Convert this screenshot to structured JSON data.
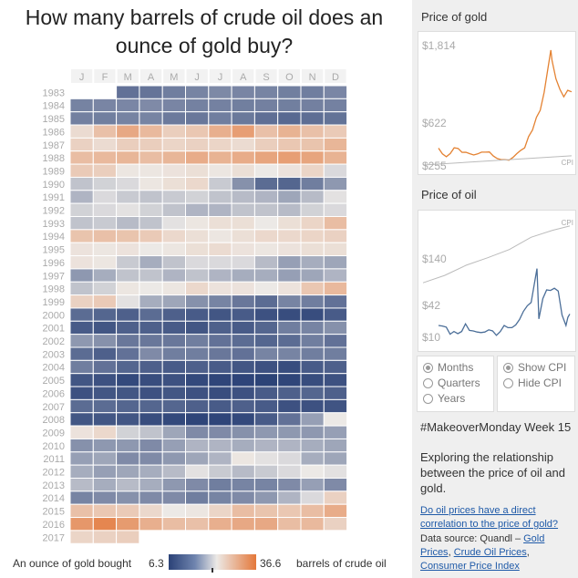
{
  "title": "How many barrels of crude oil does an ounce of gold buy?",
  "chart_data": {
    "type": "heatmap",
    "title": "How many barrels of crude oil does an ounce of gold buy?",
    "xlabel": "",
    "ylabel": "",
    "months": [
      "J",
      "F",
      "M",
      "A",
      "M",
      "J",
      "J",
      "A",
      "S",
      "O",
      "N",
      "D"
    ],
    "years": [
      "1983",
      "1984",
      "1985",
      "1986",
      "1987",
      "1988",
      "1989",
      "1990",
      "1991",
      "1992",
      "1993",
      "1994",
      "1995",
      "1996",
      "1997",
      "1998",
      "1999",
      "2000",
      "2001",
      "2002",
      "2003",
      "2004",
      "2005",
      "2006",
      "2007",
      "2008",
      "2009",
      "2010",
      "2011",
      "2012",
      "2013",
      "2014",
      "2015",
      "2016",
      "2017"
    ],
    "color_range": [
      6.3,
      36.6
    ],
    "colors": {
      "low": "#2b4277",
      "mid": "#ece9e6",
      "high": "#e4783a",
      "empty": "#ffffff"
    },
    "values": [
      [
        null,
        null,
        11.5,
        11.7,
        12.5,
        13.0,
        13.4,
        13.1,
        13.0,
        12.6,
        12.5,
        13.2
      ],
      [
        12.9,
        13.1,
        13.2,
        13.5,
        13.1,
        12.8,
        12.8,
        12.6,
        12.7,
        12.6,
        12.7,
        12.8
      ],
      [
        12.7,
        12.6,
        12.9,
        13.0,
        12.2,
        12.0,
        12.5,
        12.1,
        11.3,
        10.8,
        11.2,
        11.6
      ],
      [
        22.0,
        26.0,
        29.5,
        27.0,
        24.0,
        25.0,
        28.5,
        31.0,
        26.0,
        28.0,
        26.0,
        24.5
      ],
      [
        23.5,
        22.0,
        24.0,
        24.0,
        23.0,
        23.5,
        23.0,
        22.0,
        24.0,
        25.0,
        25.5,
        27.5
      ],
      [
        26.5,
        27.0,
        27.5,
        26.5,
        27.5,
        29.0,
        28.0,
        29.0,
        30.0,
        31.0,
        30.0,
        28.0
      ],
      [
        24.5,
        24.0,
        20.5,
        20.5,
        21.0,
        21.5,
        20.5,
        21.5,
        20.0,
        21.0,
        23.0,
        19.0
      ],
      [
        17.5,
        18.5,
        19.0,
        20.5,
        21.5,
        22.5,
        18.0,
        14.0,
        11.0,
        10.5,
        12.5,
        14.5
      ],
      [
        16.5,
        19.0,
        18.0,
        17.5,
        18.0,
        18.5,
        17.5,
        17.0,
        16.5,
        15.5,
        17.0,
        19.5
      ],
      [
        18.5,
        19.0,
        19.5,
        18.5,
        17.5,
        16.5,
        16.5,
        17.5,
        17.5,
        17.0,
        18.5,
        19.0
      ],
      [
        17.5,
        18.0,
        17.0,
        17.5,
        19.5,
        20.5,
        21.5,
        21.5,
        20.0,
        21.5,
        23.0,
        26.5
      ],
      [
        25.5,
        26.0,
        25.5,
        24.5,
        22.5,
        21.5,
        20.5,
        21.5,
        22.5,
        22.5,
        23.0,
        23.5
      ],
      [
        21.0,
        20.5,
        21.0,
        20.0,
        20.5,
        21.5,
        22.0,
        21.0,
        20.5,
        21.0,
        21.5,
        21.5
      ],
      [
        21.0,
        20.5,
        18.0,
        16.0,
        17.5,
        19.0,
        19.0,
        19.0,
        17.0,
        15.0,
        16.0,
        15.5
      ],
      [
        14.5,
        16.0,
        17.5,
        17.5,
        16.5,
        17.5,
        16.5,
        16.0,
        16.0,
        15.0,
        15.5,
        16.5
      ],
      [
        17.5,
        18.5,
        20.5,
        20.0,
        20.5,
        22.5,
        21.0,
        21.0,
        20.0,
        21.0,
        25.0,
        27.0
      ],
      [
        23.5,
        24.5,
        19.5,
        16.0,
        15.5,
        14.0,
        13.0,
        12.0,
        11.0,
        13.0,
        12.5,
        11.5
      ],
      [
        11.0,
        10.5,
        10.0,
        11.0,
        10.0,
        9.5,
        9.0,
        9.5,
        8.5,
        8.0,
        8.0,
        9.5
      ],
      [
        9.5,
        9.0,
        10.0,
        10.0,
        9.5,
        9.0,
        10.0,
        9.5,
        10.5,
        12.5,
        13.0,
        14.0
      ],
      [
        14.5,
        14.0,
        12.0,
        12.0,
        12.0,
        12.5,
        11.5,
        11.0,
        10.5,
        11.0,
        12.5,
        11.5
      ],
      [
        11.0,
        10.0,
        11.5,
        13.5,
        12.5,
        12.5,
        12.0,
        11.5,
        13.0,
        13.0,
        12.5,
        12.5
      ],
      [
        12.5,
        11.5,
        10.5,
        10.0,
        9.5,
        10.0,
        9.5,
        9.0,
        8.5,
        8.0,
        9.5,
        10.0
      ],
      [
        9.0,
        8.5,
        7.5,
        8.0,
        8.5,
        7.5,
        7.0,
        6.8,
        6.5,
        7.0,
        8.0,
        8.5
      ],
      [
        8.5,
        9.0,
        9.0,
        8.5,
        9.0,
        8.5,
        8.0,
        8.5,
        9.5,
        10.0,
        10.5,
        10.0
      ],
      [
        11.0,
        11.0,
        10.5,
        10.5,
        10.5,
        10.0,
        9.5,
        10.0,
        9.5,
        8.5,
        8.5,
        8.8
      ],
      [
        9.0,
        9.0,
        9.0,
        8.0,
        7.5,
        7.0,
        7.0,
        7.5,
        9.5,
        11.5,
        15.0,
        20.0
      ],
      [
        21.0,
        22.5,
        18.5,
        17.5,
        15.5,
        13.5,
        13.5,
        14.0,
        14.5,
        14.5,
        14.5,
        15.0
      ],
      [
        14.0,
        14.5,
        14.5,
        13.5,
        15.0,
        16.5,
        16.5,
        16.0,
        16.5,
        16.5,
        16.0,
        15.5
      ],
      [
        15.0,
        15.5,
        13.5,
        13.5,
        14.5,
        15.5,
        16.5,
        20.5,
        19.5,
        19.0,
        16.0,
        15.5
      ],
      [
        16.0,
        15.0,
        15.5,
        16.0,
        17.0,
        19.5,
        18.0,
        17.0,
        18.0,
        19.0,
        20.0,
        19.5
      ],
      [
        17.0,
        16.0,
        17.0,
        16.0,
        14.5,
        13.5,
        12.5,
        13.0,
        13.0,
        13.5,
        15.0,
        13.5
      ],
      [
        13.0,
        13.5,
        14.0,
        13.5,
        13.5,
        12.5,
        13.0,
        13.5,
        14.5,
        16.5,
        19.0,
        23.5
      ],
      [
        26.0,
        25.0,
        24.5,
        22.5,
        20.0,
        20.5,
        23.0,
        26.5,
        25.5,
        25.0,
        26.5,
        29.0
      ],
      [
        32.0,
        34.5,
        31.5,
        28.5,
        26.5,
        26.0,
        28.5,
        29.5,
        29.5,
        26.5,
        27.0,
        23.5
      ],
      [
        23.0,
        23.5,
        24.0,
        null,
        null,
        null,
        null,
        null,
        null,
        null,
        null,
        null
      ]
    ],
    "legend": {
      "left_label": "An ounce of gold bought",
      "min": "6.3",
      "max": "36.6",
      "right_label": "barrels of crude oil"
    }
  },
  "gold_panel": {
    "title": "Price of gold",
    "labels": {
      "top": "$1,814",
      "mid": "$622",
      "bottom": "$255",
      "cpi": "CPI"
    },
    "y_range": [
      255,
      1814
    ],
    "series": [
      {
        "x": 1983,
        "y": 440
      },
      {
        "x": 1984,
        "y": 360
      },
      {
        "x": 1985,
        "y": 320
      },
      {
        "x": 1986,
        "y": 365
      },
      {
        "x": 1987,
        "y": 445
      },
      {
        "x": 1988,
        "y": 437
      },
      {
        "x": 1989,
        "y": 381
      },
      {
        "x": 1990,
        "y": 383
      },
      {
        "x": 1991,
        "y": 362
      },
      {
        "x": 1992,
        "y": 344
      },
      {
        "x": 1993,
        "y": 360
      },
      {
        "x": 1994,
        "y": 384
      },
      {
        "x": 1995,
        "y": 384
      },
      {
        "x": 1996,
        "y": 387
      },
      {
        "x": 1997,
        "y": 331
      },
      {
        "x": 1998,
        "y": 294
      },
      {
        "x": 1999,
        "y": 279
      },
      {
        "x": 2000,
        "y": 279
      },
      {
        "x": 2001,
        "y": 271
      },
      {
        "x": 2002,
        "y": 310
      },
      {
        "x": 2003,
        "y": 363
      },
      {
        "x": 2004,
        "y": 409
      },
      {
        "x": 2005,
        "y": 444
      },
      {
        "x": 2006,
        "y": 603
      },
      {
        "x": 2007,
        "y": 695
      },
      {
        "x": 2008,
        "y": 872
      },
      {
        "x": 2009,
        "y": 972
      },
      {
        "x": 2010,
        "y": 1225
      },
      {
        "x": 2011,
        "y": 1572
      },
      {
        "x": 2011.7,
        "y": 1814
      },
      {
        "x": 2012,
        "y": 1669
      },
      {
        "x": 2013,
        "y": 1411
      },
      {
        "x": 2014,
        "y": 1266
      },
      {
        "x": 2015,
        "y": 1160
      },
      {
        "x": 2016,
        "y": 1250
      },
      {
        "x": 2017,
        "y": 1230
      }
    ],
    "cpi_series": [
      {
        "x": 1983,
        "y": 255
      },
      {
        "x": 2017,
        "y": 380
      }
    ]
  },
  "oil_panel": {
    "title": "Price of oil",
    "labels": {
      "cpi": "CPI",
      "upper": "$140",
      "mid": "$42",
      "bottom": "$10"
    },
    "y_range": [
      10,
      160
    ],
    "series": [
      {
        "x": 1983,
        "y": 30
      },
      {
        "x": 1984,
        "y": 29
      },
      {
        "x": 1985,
        "y": 27
      },
      {
        "x": 1986,
        "y": 14
      },
      {
        "x": 1987,
        "y": 19
      },
      {
        "x": 1988,
        "y": 15
      },
      {
        "x": 1989,
        "y": 19
      },
      {
        "x": 1990,
        "y": 33
      },
      {
        "x": 1991,
        "y": 21
      },
      {
        "x": 1992,
        "y": 20
      },
      {
        "x": 1993,
        "y": 18
      },
      {
        "x": 1994,
        "y": 17
      },
      {
        "x": 1995,
        "y": 18
      },
      {
        "x": 1996,
        "y": 22
      },
      {
        "x": 1997,
        "y": 20
      },
      {
        "x": 1998,
        "y": 12
      },
      {
        "x": 1999,
        "y": 19
      },
      {
        "x": 2000,
        "y": 30
      },
      {
        "x": 2001,
        "y": 26
      },
      {
        "x": 2002,
        "y": 26
      },
      {
        "x": 2003,
        "y": 31
      },
      {
        "x": 2004,
        "y": 41
      },
      {
        "x": 2005,
        "y": 56
      },
      {
        "x": 2006,
        "y": 66
      },
      {
        "x": 2007,
        "y": 72
      },
      {
        "x": 2008.5,
        "y": 134
      },
      {
        "x": 2009,
        "y": 42
      },
      {
        "x": 2010,
        "y": 79
      },
      {
        "x": 2011,
        "y": 95
      },
      {
        "x": 2012,
        "y": 94
      },
      {
        "x": 2013,
        "y": 98
      },
      {
        "x": 2014,
        "y": 93
      },
      {
        "x": 2015,
        "y": 49
      },
      {
        "x": 2016,
        "y": 30
      },
      {
        "x": 2016.5,
        "y": 45
      },
      {
        "x": 2017,
        "y": 51
      }
    ],
    "cpi_series": [
      {
        "x": 1983,
        "y": 99
      },
      {
        "x": 1988,
        "y": 118
      },
      {
        "x": 1993,
        "y": 144
      },
      {
        "x": 1998,
        "y": 163
      },
      {
        "x": 2003,
        "y": 184
      },
      {
        "x": 2008,
        "y": 215
      },
      {
        "x": 2013,
        "y": 233
      },
      {
        "x": 2017,
        "y": 244
      }
    ],
    "cpi_range": [
      60,
      260
    ]
  },
  "controls": {
    "granularity": [
      {
        "label": "Months",
        "selected": true
      },
      {
        "label": "Quarters",
        "selected": false
      },
      {
        "label": "Years",
        "selected": false
      }
    ],
    "cpi": [
      {
        "label": "Show CPI",
        "selected": true
      },
      {
        "label": "Hide CPI",
        "selected": false
      }
    ]
  },
  "info": {
    "hashtag": "#MakeoverMonday Week 15",
    "description": "Exploring the relationship between the price of oil and gold.",
    "question_link": "Do oil prices have a direct correlation to the price of gold?",
    "source_prefix": "Data source: Quandl – ",
    "source_links": [
      "Gold Prices",
      "Crude Oil Prices",
      "Consumer Price Index"
    ]
  }
}
